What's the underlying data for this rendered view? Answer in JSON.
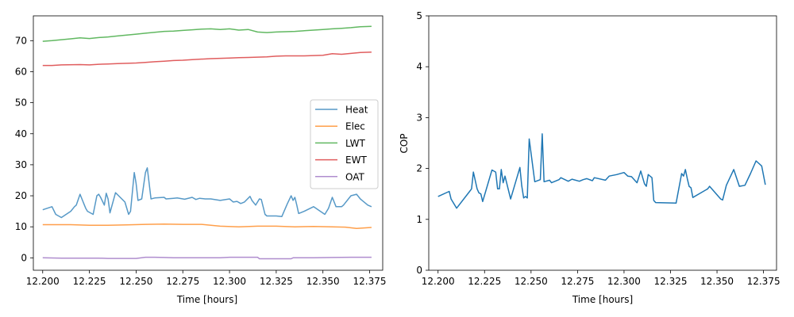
{
  "chart_data": [
    {
      "type": "line",
      "xlabel": "Time [hours]",
      "ylabel": "",
      "xlim": [
        12.195,
        12.382
      ],
      "ylim": [
        -4,
        78
      ],
      "xticks": [
        {
          "value": 12.2,
          "label": "12.200"
        },
        {
          "value": 12.225,
          "label": "12.225"
        },
        {
          "value": 12.25,
          "label": "12.250"
        },
        {
          "value": 12.275,
          "label": "12.275"
        },
        {
          "value": 12.3,
          "label": "12.300"
        },
        {
          "value": 12.325,
          "label": "12.325"
        },
        {
          "value": 12.35,
          "label": "12.350"
        },
        {
          "value": 12.375,
          "label": "12.375"
        }
      ],
      "yticks": [
        {
          "value": 0,
          "label": "0"
        },
        {
          "value": 10,
          "label": "10"
        },
        {
          "value": 20,
          "label": "20"
        },
        {
          "value": 30,
          "label": "30"
        },
        {
          "value": 40,
          "label": "40"
        },
        {
          "value": 50,
          "label": "50"
        },
        {
          "value": 60,
          "label": "60"
        },
        {
          "value": 70,
          "label": "70"
        }
      ],
      "legend_position": "center-right",
      "series": [
        {
          "name": "Heat",
          "color": "#1f77b4",
          "alpha": 0.75,
          "x": [
            12.2,
            12.205,
            12.207,
            12.21,
            12.215,
            12.217,
            12.218,
            12.22,
            12.222,
            12.223,
            12.224,
            12.227,
            12.229,
            12.23,
            12.231,
            12.233,
            12.234,
            12.235,
            12.236,
            12.239,
            12.244,
            12.246,
            12.247,
            12.249,
            12.25,
            12.251,
            12.253,
            12.255,
            12.256,
            12.258,
            12.26,
            12.265,
            12.266,
            12.27,
            12.272,
            12.276,
            12.28,
            12.282,
            12.284,
            12.287,
            12.29,
            12.295,
            12.3,
            12.302,
            12.304,
            12.306,
            12.308,
            12.311,
            12.312,
            12.314,
            12.316,
            12.317,
            12.319,
            12.32,
            12.325,
            12.328,
            12.331,
            12.333,
            12.334,
            12.335,
            12.336,
            12.337,
            12.34,
            12.345,
            12.351,
            12.353,
            12.355,
            12.357,
            12.36,
            12.361,
            12.365,
            12.368,
            12.37,
            12.371,
            12.374,
            12.376
          ],
          "y": [
            15.5,
            16.5,
            14.0,
            13.0,
            15.0,
            16.5,
            17.0,
            20.5,
            17.5,
            16.0,
            15.0,
            14.0,
            20.0,
            20.5,
            19.5,
            17.0,
            20.8,
            19.0,
            14.5,
            21.0,
            18.0,
            14.0,
            15.0,
            27.5,
            24.0,
            18.5,
            19.0,
            27.5,
            29.0,
            19.0,
            19.3,
            19.5,
            19.0,
            19.2,
            19.3,
            18.9,
            19.5,
            18.8,
            19.2,
            19.0,
            19.0,
            18.5,
            19.0,
            18.0,
            18.2,
            17.5,
            18.0,
            19.8,
            18.5,
            17.0,
            19.0,
            18.8,
            14.0,
            13.5,
            13.5,
            13.3,
            17.5,
            20.0,
            18.5,
            19.5,
            17.0,
            14.3,
            15.0,
            16.5,
            14.0,
            16.0,
            19.5,
            16.5,
            16.5,
            17.0,
            20.0,
            20.5,
            19.0,
            18.5,
            17.0,
            16.5
          ]
        },
        {
          "name": "Elec",
          "color": "#ff7f0e",
          "alpha": 0.75,
          "x": [
            12.2,
            12.215,
            12.225,
            12.235,
            12.245,
            12.255,
            12.265,
            12.275,
            12.285,
            12.295,
            12.305,
            12.315,
            12.325,
            12.335,
            12.345,
            12.355,
            12.362,
            12.368,
            12.376
          ],
          "y": [
            10.7,
            10.7,
            10.5,
            10.5,
            10.6,
            10.8,
            10.9,
            10.8,
            10.8,
            10.2,
            10.0,
            10.2,
            10.2,
            10.0,
            10.1,
            10.0,
            9.9,
            9.5,
            9.8
          ]
        },
        {
          "name": "LWT",
          "color": "#2ca02c",
          "alpha": 0.75,
          "x": [
            12.2,
            12.205,
            12.21,
            12.215,
            12.22,
            12.225,
            12.23,
            12.235,
            12.24,
            12.245,
            12.25,
            12.255,
            12.26,
            12.265,
            12.27,
            12.275,
            12.28,
            12.285,
            12.29,
            12.295,
            12.3,
            12.305,
            12.31,
            12.315,
            12.32,
            12.325,
            12.33,
            12.335,
            12.34,
            12.345,
            12.35,
            12.355,
            12.36,
            12.365,
            12.37,
            12.376
          ],
          "y": [
            69.8,
            70.0,
            70.3,
            70.6,
            70.9,
            70.7,
            71.0,
            71.2,
            71.5,
            71.8,
            72.1,
            72.4,
            72.7,
            73.0,
            73.1,
            73.3,
            73.5,
            73.7,
            73.8,
            73.6,
            73.8,
            73.4,
            73.6,
            72.8,
            72.6,
            72.8,
            72.9,
            73.0,
            73.2,
            73.4,
            73.6,
            73.8,
            74.0,
            74.2,
            74.5,
            74.6
          ]
        },
        {
          "name": "EWT",
          "color": "#d62728",
          "alpha": 0.75,
          "x": [
            12.2,
            12.205,
            12.21,
            12.22,
            12.225,
            12.23,
            12.235,
            12.24,
            12.245,
            12.25,
            12.255,
            12.26,
            12.265,
            12.27,
            12.275,
            12.28,
            12.29,
            12.3,
            12.305,
            12.31,
            12.32,
            12.325,
            12.33,
            12.34,
            12.35,
            12.355,
            12.36,
            12.365,
            12.37,
            12.376
          ],
          "y": [
            62.0,
            62.0,
            62.2,
            62.3,
            62.2,
            62.4,
            62.5,
            62.6,
            62.7,
            62.8,
            63.0,
            63.2,
            63.4,
            63.6,
            63.7,
            63.9,
            64.2,
            64.4,
            64.5,
            64.6,
            64.8,
            65.0,
            65.1,
            65.1,
            65.3,
            65.8,
            65.6,
            65.9,
            66.2,
            66.3
          ]
        },
        {
          "name": "OAT",
          "color": "#9467bd",
          "alpha": 0.75,
          "x": [
            12.2,
            12.21,
            12.22,
            12.23,
            12.235,
            12.245,
            12.25,
            12.255,
            12.26,
            12.265,
            12.27,
            12.28,
            12.29,
            12.295,
            12.3,
            12.31,
            12.315,
            12.316,
            12.325,
            12.333,
            12.334,
            12.345,
            12.355,
            12.365,
            12.376
          ],
          "y": [
            0.0,
            -0.1,
            -0.1,
            -0.1,
            -0.2,
            -0.2,
            -0.2,
            0.2,
            0.2,
            0.1,
            0.0,
            0.0,
            0.0,
            0.0,
            0.2,
            0.2,
            0.2,
            -0.3,
            -0.3,
            -0.3,
            0.0,
            0.0,
            0.1,
            0.2,
            0.2
          ]
        }
      ]
    },
    {
      "type": "line",
      "xlabel": "Time [hours]",
      "ylabel": "COP",
      "xlim": [
        12.195,
        12.382
      ],
      "ylim": [
        0,
        5
      ],
      "xticks": [
        {
          "value": 12.2,
          "label": "12.200"
        },
        {
          "value": 12.225,
          "label": "12.225"
        },
        {
          "value": 12.25,
          "label": "12.250"
        },
        {
          "value": 12.275,
          "label": "12.275"
        },
        {
          "value": 12.3,
          "label": "12.300"
        },
        {
          "value": 12.325,
          "label": "12.325"
        },
        {
          "value": 12.35,
          "label": "12.350"
        },
        {
          "value": 12.375,
          "label": "12.375"
        }
      ],
      "yticks": [
        {
          "value": 0,
          "label": "0"
        },
        {
          "value": 1,
          "label": "1"
        },
        {
          "value": 2,
          "label": "2"
        },
        {
          "value": 3,
          "label": "3"
        },
        {
          "value": 4,
          "label": "4"
        },
        {
          "value": 5,
          "label": "5"
        }
      ],
      "series": [
        {
          "name": "COP",
          "color": "#1f77b4",
          "alpha": 1.0,
          "x": [
            12.2,
            12.206,
            12.207,
            12.21,
            12.217,
            12.218,
            12.219,
            12.221,
            12.222,
            12.223,
            12.224,
            12.229,
            12.231,
            12.232,
            12.233,
            12.234,
            12.235,
            12.236,
            12.239,
            12.244,
            12.245,
            12.246,
            12.247,
            12.248,
            12.249,
            12.252,
            12.255,
            12.256,
            12.257,
            12.26,
            12.261,
            12.265,
            12.266,
            12.27,
            12.272,
            12.276,
            12.278,
            12.28,
            12.283,
            12.284,
            12.29,
            12.292,
            12.296,
            12.3,
            12.302,
            12.304,
            12.307,
            12.309,
            12.311,
            12.312,
            12.313,
            12.315,
            12.316,
            12.317,
            12.328,
            12.331,
            12.332,
            12.333,
            12.334,
            12.335,
            12.336,
            12.337,
            12.345,
            12.346,
            12.352,
            12.353,
            12.355,
            12.359,
            12.362,
            12.365,
            12.368,
            12.371,
            12.374,
            12.376
          ],
          "y": [
            1.45,
            1.55,
            1.4,
            1.22,
            1.55,
            1.6,
            1.93,
            1.6,
            1.52,
            1.5,
            1.35,
            1.97,
            1.93,
            1.6,
            1.6,
            1.98,
            1.72,
            1.85,
            1.4,
            2.02,
            1.66,
            1.42,
            1.45,
            1.42,
            2.58,
            1.74,
            1.78,
            2.68,
            1.74,
            1.77,
            1.72,
            1.78,
            1.82,
            1.75,
            1.79,
            1.75,
            1.78,
            1.8,
            1.76,
            1.82,
            1.77,
            1.85,
            1.88,
            1.92,
            1.85,
            1.84,
            1.72,
            1.95,
            1.7,
            1.65,
            1.88,
            1.82,
            1.37,
            1.33,
            1.32,
            1.9,
            1.85,
            1.98,
            1.8,
            1.65,
            1.62,
            1.43,
            1.6,
            1.65,
            1.4,
            1.38,
            1.67,
            1.98,
            1.65,
            1.67,
            1.9,
            2.15,
            2.05,
            1.68
          ]
        }
      ]
    }
  ]
}
